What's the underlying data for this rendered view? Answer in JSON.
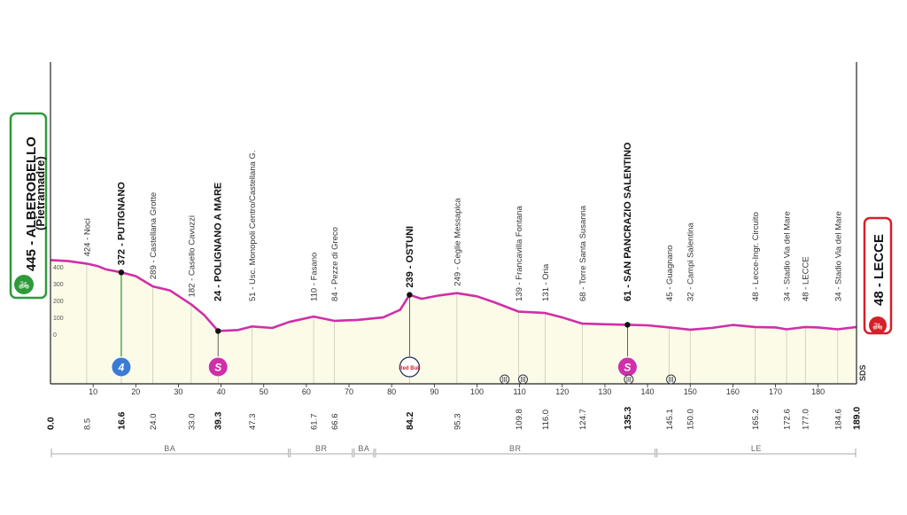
{
  "start": {
    "altitude": "445",
    "name": "ALBEROBELLO",
    "subname": "(Pietramadre)",
    "km": "0.0",
    "color": "#2e9a3a"
  },
  "finish": {
    "altitude": "48",
    "name": "LECCE",
    "km": "189.0",
    "color": "#d6202a"
  },
  "profile_color": "#d02fa8",
  "fill_color": "#fbfbe8",
  "sds_label": "SDS",
  "chart_data": {
    "type": "area",
    "xlim": [
      0,
      189
    ],
    "ylim": [
      0,
      500
    ],
    "y_ticks": [
      "400",
      "300",
      "200",
      "100",
      "0"
    ],
    "x_ticks": [
      "10",
      "20",
      "30",
      "40",
      "50",
      "60",
      "70",
      "80",
      "90",
      "100",
      "110",
      "120",
      "130",
      "140",
      "150",
      "160",
      "170",
      "180"
    ],
    "profile": [
      [
        0,
        445
      ],
      [
        4,
        440
      ],
      [
        8.5,
        424
      ],
      [
        11,
        410
      ],
      [
        13,
        390
      ],
      [
        16.6,
        372
      ],
      [
        20,
        350
      ],
      [
        24,
        289
      ],
      [
        28,
        265
      ],
      [
        33,
        182
      ],
      [
        36,
        120
      ],
      [
        39.3,
        24
      ],
      [
        44,
        30
      ],
      [
        47.3,
        51
      ],
      [
        52,
        42
      ],
      [
        56,
        78
      ],
      [
        61.7,
        110
      ],
      [
        66.6,
        84
      ],
      [
        72,
        90
      ],
      [
        78,
        105
      ],
      [
        82,
        150
      ],
      [
        84.2,
        239
      ],
      [
        87,
        215
      ],
      [
        91,
        235
      ],
      [
        95.3,
        249
      ],
      [
        100,
        230
      ],
      [
        104,
        195
      ],
      [
        109.8,
        139
      ],
      [
        116,
        131
      ],
      [
        120,
        105
      ],
      [
        124.7,
        68
      ],
      [
        130,
        64
      ],
      [
        135.3,
        61
      ],
      [
        140,
        58
      ],
      [
        145.1,
        45
      ],
      [
        150,
        32
      ],
      [
        155,
        42
      ],
      [
        160,
        60
      ],
      [
        165.2,
        48
      ],
      [
        170,
        45
      ],
      [
        172.6,
        34
      ],
      [
        177,
        48
      ],
      [
        180,
        45
      ],
      [
        184.6,
        34
      ],
      [
        189,
        48
      ]
    ],
    "points": [
      {
        "km": 8.5,
        "label": "424 - Noci",
        "bold": false
      },
      {
        "km": 16.6,
        "label": "372 - PUTIGNANO",
        "bold": true
      },
      {
        "km": 24.0,
        "label": "289 - Castellana Grotte",
        "bold": false
      },
      {
        "km": 33.0,
        "label": "182 - Casello Cavuzzi",
        "bold": false
      },
      {
        "km": 39.3,
        "label": "24 - POLIGNANO A MARE",
        "bold": true
      },
      {
        "km": 47.3,
        "label": "51 - Usc. Monopoli Centro/Castellana G.",
        "bold": false
      },
      {
        "km": 61.7,
        "label": "110 - Fasano",
        "bold": false
      },
      {
        "km": 66.6,
        "label": "84 - Pezze di Greco",
        "bold": false
      },
      {
        "km": 84.2,
        "label": "239 - OSTUNI",
        "bold": true
      },
      {
        "km": 95.3,
        "label": "249 - Ceglie Messapica",
        "bold": false
      },
      {
        "km": 109.8,
        "label": "139 - Francavilla Fontana",
        "bold": false
      },
      {
        "km": 116.0,
        "label": "131 - Oria",
        "bold": false
      },
      {
        "km": 124.7,
        "label": "68 - Torre Santa Susanna",
        "bold": false
      },
      {
        "km": 135.3,
        "label": "61 - SAN PANCRAZIO SALENTINO",
        "bold": true
      },
      {
        "km": 145.1,
        "label": "45 - Guagnano",
        "bold": false
      },
      {
        "km": 150.0,
        "label": "32 - Campi Salentina",
        "bold": false
      },
      {
        "km": 165.2,
        "label": "48 - Lecce-Ingr. Circuito",
        "bold": false
      },
      {
        "km": 172.6,
        "label": "34 - Stadio Via del Mare",
        "bold": false
      },
      {
        "km": 177.0,
        "label": "48 - LECCE",
        "bold": false
      },
      {
        "km": 184.6,
        "label": "34 - Stadio Via del Mare",
        "bold": false
      }
    ],
    "km_labels": [
      {
        "km": 0,
        "text": "0.0",
        "bold": true
      },
      {
        "km": 8.5,
        "text": "8.5",
        "bold": false
      },
      {
        "km": 16.6,
        "text": "16.6",
        "bold": true
      },
      {
        "km": 24.0,
        "text": "24.0",
        "bold": false
      },
      {
        "km": 33.0,
        "text": "33.0",
        "bold": false
      },
      {
        "km": 39.3,
        "text": "39.3",
        "bold": true
      },
      {
        "km": 47.3,
        "text": "47.3",
        "bold": false
      },
      {
        "km": 61.7,
        "text": "61.7",
        "bold": false
      },
      {
        "km": 66.6,
        "text": "66.6",
        "bold": false
      },
      {
        "km": 84.2,
        "text": "84.2",
        "bold": true
      },
      {
        "km": 95.3,
        "text": "95.3",
        "bold": false
      },
      {
        "km": 109.8,
        "text": "109.8",
        "bold": false
      },
      {
        "km": 116.0,
        "text": "116.0",
        "bold": false
      },
      {
        "km": 124.7,
        "text": "124.7",
        "bold": false
      },
      {
        "km": 135.3,
        "text": "135.3",
        "bold": true
      },
      {
        "km": 145.1,
        "text": "145.1",
        "bold": false
      },
      {
        "km": 150.0,
        "text": "150.0",
        "bold": false
      },
      {
        "km": 165.2,
        "text": "165.2",
        "bold": false
      },
      {
        "km": 172.6,
        "text": "172.6",
        "bold": false
      },
      {
        "km": 177.0,
        "text": "177.0",
        "bold": false
      },
      {
        "km": 184.6,
        "text": "184.6",
        "bold": false
      },
      {
        "km": 189,
        "text": "189.0",
        "bold": true
      }
    ],
    "markers": [
      {
        "km": 16.6,
        "kind": "gpm-4",
        "icon": "climb-category-4-icon",
        "text": "4",
        "color": "#3a7bd5"
      },
      {
        "km": 39.3,
        "kind": "sprint",
        "icon": "intermediate-sprint-icon",
        "text": "S",
        "color": "#d02fa8"
      },
      {
        "km": 84.2,
        "kind": "red-bull-km",
        "icon": "red-bull-km-icon",
        "text": "Red Bull",
        "color": "#d6202a"
      },
      {
        "km": 135.3,
        "kind": "sprint",
        "icon": "intermediate-sprint-icon",
        "text": "S",
        "color": "#d02fa8"
      }
    ],
    "level_crossings": [
      106.5,
      110.8,
      135.6,
      145.5
    ],
    "regions": [
      {
        "name": "BA",
        "from": 0,
        "to": 56
      },
      {
        "name": "BR",
        "from": 56,
        "to": 71
      },
      {
        "name": "BA",
        "from": 71,
        "to": 76
      },
      {
        "name": "BR",
        "from": 76,
        "to": 142
      },
      {
        "name": "LE",
        "from": 142,
        "to": 189
      }
    ]
  }
}
